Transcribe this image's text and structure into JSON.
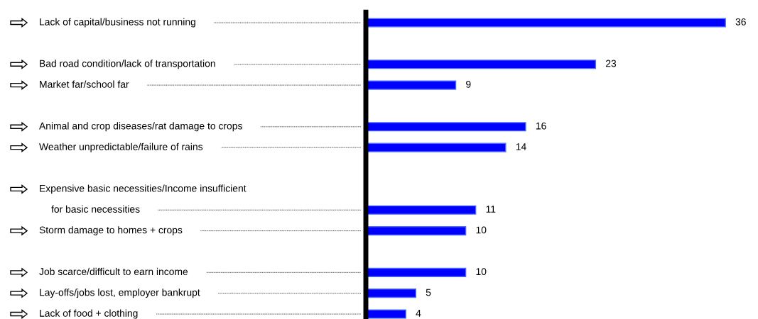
{
  "chart_data": {
    "type": "bar",
    "orientation": "horizontal",
    "data_labels": true,
    "grid": false,
    "categories": [
      "Lack of capital/business not running",
      null,
      "Bad road condition/lack of transportation",
      "Market far/school far",
      null,
      "Animal and crop diseases/rat damage to crops",
      "Weather unpredictable/failure of rains",
      null,
      null,
      "Expensive basic necessities/Income insufficient\nfor basic necessities",
      "Storm damage to homes + crops",
      null,
      "Job scarce/difficult to earn income",
      "Lay-offs/jobs lost, employer bankrupt",
      "Lack of food + clothing"
    ],
    "values": [
      36,
      null,
      23,
      9,
      null,
      16,
      14,
      null,
      null,
      11,
      10,
      null,
      10,
      5,
      4
    ],
    "color": "#0000ff"
  }
}
